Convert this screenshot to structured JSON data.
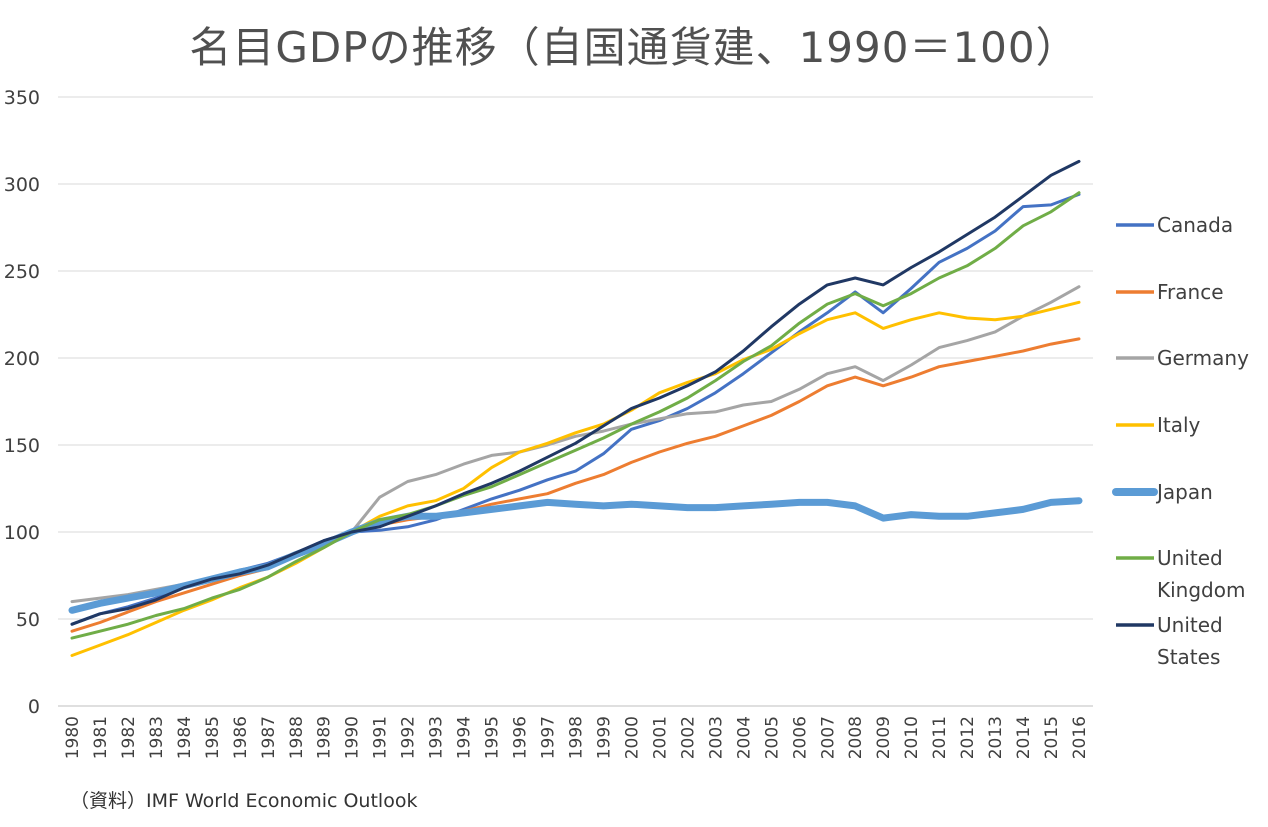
{
  "chart_data": {
    "type": "line",
    "title": "名目GDPの推移（自国通貨建、1990＝100）",
    "source": "（資料）IMF World Economic Outlook",
    "xlabel": "",
    "ylabel": "",
    "ylim": [
      0,
      350
    ],
    "yticks": [
      0,
      50,
      100,
      150,
      200,
      250,
      300,
      350
    ],
    "grid": true,
    "legend_position": "right",
    "categories": [
      "1980",
      "1981",
      "1982",
      "1983",
      "1984",
      "1985",
      "1986",
      "1987",
      "1988",
      "1989",
      "1990",
      "1991",
      "1992",
      "1993",
      "1994",
      "1995",
      "1996",
      "1997",
      "1998",
      "1999",
      "2000",
      "2001",
      "2002",
      "2003",
      "2004",
      "2005",
      "2006",
      "2007",
      "2008",
      "2009",
      "2010",
      "2011",
      "2012",
      "2013",
      "2014",
      "2015",
      "2016"
    ],
    "series": [
      {
        "name": "Canada",
        "color": "#4472C4",
        "values": [
          47,
          53,
          57,
          62,
          69,
          74,
          78,
          82,
          88,
          95,
          100,
          101,
          103,
          107,
          113,
          119,
          124,
          130,
          135,
          145,
          159,
          164,
          171,
          180,
          191,
          203,
          215,
          226,
          238,
          226,
          240,
          255,
          263,
          273,
          287,
          288,
          294
        ]
      },
      {
        "name": "France",
        "color": "#ED7D31",
        "values": [
          43,
          48,
          54,
          60,
          65,
          70,
          75,
          79,
          86,
          93,
          100,
          104,
          107,
          109,
          112,
          116,
          119,
          122,
          128,
          133,
          140,
          146,
          151,
          155,
          161,
          167,
          175,
          184,
          189,
          184,
          189,
          195,
          198,
          201,
          204,
          208,
          211
        ]
      },
      {
        "name": "Germany",
        "color": "#A5A5A5",
        "values": [
          60,
          62,
          64,
          67,
          70,
          73,
          77,
          81,
          86,
          93,
          100,
          120,
          129,
          133,
          139,
          144,
          146,
          150,
          155,
          158,
          162,
          165,
          168,
          169,
          173,
          175,
          182,
          191,
          195,
          187,
          196,
          206,
          210,
          215,
          224,
          232,
          241
        ]
      },
      {
        "name": "Italy",
        "color": "#FFC000",
        "values": [
          29,
          35,
          41,
          48,
          55,
          61,
          68,
          74,
          82,
          91,
          100,
          109,
          115,
          118,
          125,
          137,
          146,
          151,
          157,
          162,
          170,
          180,
          186,
          191,
          199,
          205,
          214,
          222,
          226,
          217,
          222,
          226,
          223,
          222,
          224,
          228,
          232
        ]
      },
      {
        "name": "Japan",
        "color": "#5B9BD5",
        "values": [
          55,
          59,
          62,
          65,
          69,
          73,
          77,
          80,
          87,
          93,
          100,
          106,
          109,
          109,
          111,
          113,
          115,
          117,
          116,
          115,
          116,
          115,
          114,
          114,
          115,
          116,
          117,
          117,
          115,
          108,
          110,
          109,
          109,
          111,
          113,
          117,
          118
        ]
      },
      {
        "name": "United Kingdom",
        "color": "#70AD47",
        "values": [
          39,
          43,
          47,
          52,
          56,
          62,
          67,
          74,
          83,
          91,
          100,
          107,
          110,
          115,
          121,
          126,
          133,
          140,
          147,
          154,
          162,
          169,
          177,
          187,
          198,
          207,
          220,
          231,
          237,
          230,
          237,
          246,
          253,
          263,
          276,
          284,
          295
        ]
      },
      {
        "name": "United States",
        "color": "#203864",
        "values": [
          47,
          53,
          56,
          61,
          68,
          73,
          76,
          81,
          88,
          95,
          100,
          103,
          109,
          115,
          122,
          128,
          135,
          143,
          151,
          161,
          171,
          177,
          184,
          192,
          204,
          218,
          231,
          242,
          246,
          242,
          252,
          261,
          271,
          281,
          293,
          305,
          313
        ]
      }
    ],
    "legend": [
      {
        "label": [
          "Canada"
        ]
      },
      {
        "label": [
          "France"
        ]
      },
      {
        "label": [
          "Germany"
        ]
      },
      {
        "label": [
          "Italy"
        ]
      },
      {
        "label": [
          "Japan"
        ]
      },
      {
        "label": [
          "United",
          "Kingdom"
        ]
      },
      {
        "label": [
          "United",
          "States"
        ]
      }
    ]
  }
}
